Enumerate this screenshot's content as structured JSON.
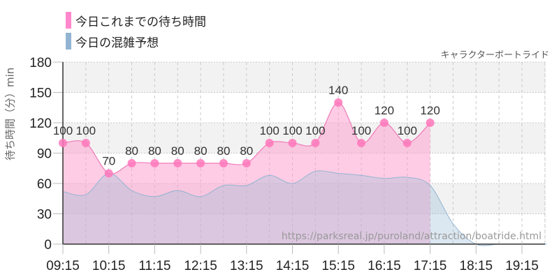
{
  "legend": [
    {
      "label": "今日これまでの待ち時間",
      "color": "#ff88cc"
    },
    {
      "label": "今日の混雑予想",
      "color": "#92b4d2"
    }
  ],
  "subtitle": "キャラクターボートライド",
  "watermark": "https://parksreal.jp/puroland/attraction/boatride.html",
  "chart_data": {
    "type": "area",
    "title": "キャラクターボートライド",
    "xlabel": "",
    "ylabel": "待ち時間（分）min",
    "ylim": [
      0,
      180
    ],
    "yticks": [
      0,
      30,
      60,
      90,
      120,
      150,
      180
    ],
    "xtick_labels": [
      "09:15",
      "10:15",
      "11:15",
      "12:15",
      "13:15",
      "14:15",
      "15:15",
      "16:15",
      "17:15",
      "18:15",
      "19:15"
    ],
    "grid": true,
    "legend_position": "top-left",
    "x": [
      "09:15",
      "09:45",
      "10:15",
      "10:45",
      "11:15",
      "11:45",
      "12:15",
      "12:45",
      "13:15",
      "13:45",
      "14:15",
      "14:45",
      "15:15",
      "15:45",
      "16:15",
      "16:45",
      "17:15",
      "17:45",
      "18:15",
      "18:45",
      "19:15",
      "19:45"
    ],
    "series": [
      {
        "name": "今日これまでの待ち時間",
        "color": "#ff88cc",
        "values": [
          100,
          100,
          70,
          80,
          80,
          80,
          80,
          80,
          80,
          100,
          100,
          100,
          140,
          100,
          120,
          100,
          120,
          null,
          null,
          null,
          null,
          null
        ]
      },
      {
        "name": "今日の混雑予想",
        "color": "#92b4d2",
        "values": [
          52,
          49,
          70,
          53,
          47,
          53,
          47,
          58,
          58,
          68,
          60,
          72,
          70,
          68,
          65,
          66,
          58,
          20,
          0,
          0,
          0,
          0
        ]
      }
    ]
  }
}
